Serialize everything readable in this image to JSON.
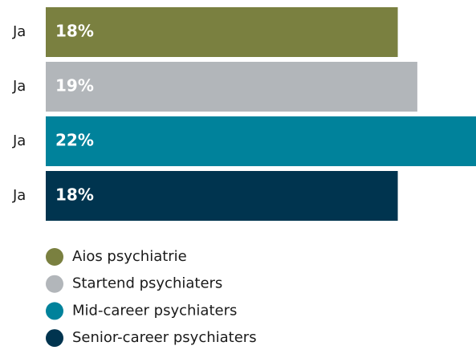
{
  "chart_data": {
    "type": "bar",
    "orientation": "horizontal",
    "categories": [
      "Ja"
    ],
    "series": [
      {
        "name": "Aios psychiatrie",
        "color": "#7a8040",
        "values": [
          18
        ],
        "value_labels": [
          "18%"
        ]
      },
      {
        "name": "Startend psychiaters",
        "color": "#b2b6ba",
        "values": [
          19
        ],
        "value_labels": [
          "19%"
        ]
      },
      {
        "name": "Mid-career psychiaters",
        "color": "#00829b",
        "values": [
          22
        ],
        "value_labels": [
          "22%"
        ]
      },
      {
        "name": "Senior-career psychiaters",
        "color": "#00344f",
        "values": [
          18
        ],
        "value_labels": [
          "18%"
        ]
      }
    ],
    "legend": "bottom-left"
  }
}
